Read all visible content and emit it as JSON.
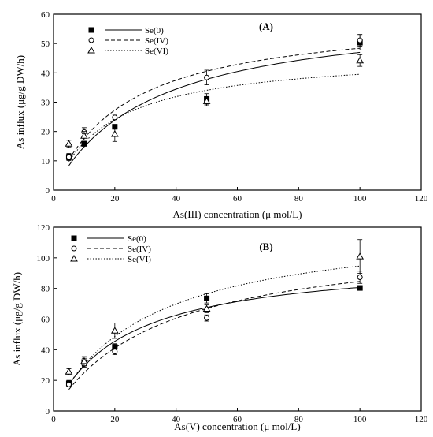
{
  "chart_data": [
    {
      "type": "scatter",
      "panel_label": "(A)",
      "xlabel": "As(III) concentration (μ mol/L)",
      "ylabel": "As influx (μg/g DW/h)",
      "xlim": [
        0,
        120
      ],
      "ylim": [
        0,
        60
      ],
      "xticks": [
        0,
        20,
        40,
        60,
        80,
        100,
        120
      ],
      "yticks": [
        0,
        10,
        20,
        30,
        40,
        50,
        60
      ],
      "legend_position": "top-left",
      "fits": "Michaelis-Menten curves",
      "series": [
        {
          "name": "Se(0)",
          "marker": "filled-square",
          "line": "solid",
          "x": [
            5,
            10,
            20,
            50,
            100
          ],
          "y": [
            11.3,
            15.8,
            21.6,
            31.1,
            50.3
          ],
          "err": [
            1.2,
            0.8,
            0.8,
            1.8,
            2.5
          ],
          "fit": {
            "vmax": 62,
            "km": 32
          }
        },
        {
          "name": "Se(IV)",
          "marker": "open-circle",
          "line": "dashed",
          "x": [
            5,
            10,
            20,
            50,
            100
          ],
          "y": [
            11.3,
            19.8,
            24.8,
            38.4,
            51.1
          ],
          "err": [
            1.0,
            1.5,
            0.8,
            2.5,
            2.0
          ],
          "fit": {
            "vmax": 60,
            "km": 24
          }
        },
        {
          "name": "Se(VI)",
          "marker": "open-triangle",
          "line": "dotted",
          "x": [
            5,
            10,
            20,
            50,
            100
          ],
          "y": [
            15.8,
            18.5,
            19.1,
            30.3,
            44.2
          ],
          "err": [
            1.2,
            1.5,
            2.5,
            1.5,
            2.0
          ],
          "fit": {
            "vmax": 47,
            "km": 19
          }
        }
      ]
    },
    {
      "type": "scatter",
      "panel_label": "(B)",
      "xlabel": "As(V) concentration (μ mol/L)",
      "ylabel": "As influx (μg/g DW/h)",
      "xlim": [
        0,
        120
      ],
      "ylim": [
        0,
        120
      ],
      "xticks": [
        0,
        20,
        40,
        60,
        80,
        100,
        120
      ],
      "yticks": [
        0,
        20,
        40,
        60,
        80,
        100,
        120
      ],
      "legend_position": "top-left",
      "fits": "Michaelis-Menten curves",
      "series": [
        {
          "name": "Se(0)",
          "marker": "filled-square",
          "line": "solid",
          "x": [
            5,
            10,
            20,
            50,
            100
          ],
          "y": [
            18.0,
            31.9,
            41.9,
            73.5,
            80.3
          ],
          "err": [
            2.0,
            2.5,
            2.0,
            3.0,
            1.5
          ],
          "fit": {
            "vmax": 100,
            "km": 24
          }
        },
        {
          "name": "Se(IV)",
          "marker": "open-circle",
          "line": "dashed",
          "x": [
            5,
            10,
            20,
            50,
            100
          ],
          "y": [
            17.3,
            30.6,
            38.8,
            60.7,
            87.3
          ],
          "err": [
            1.5,
            2.0,
            2.0,
            2.0,
            4.0
          ],
          "fit": {
            "vmax": 115,
            "km": 36
          }
        },
        {
          "name": "Se(VI)",
          "marker": "open-triangle",
          "line": "dotted",
          "x": [
            5,
            10,
            20,
            50,
            100
          ],
          "y": [
            25.6,
            32.5,
            52.4,
            66.7,
            100.9
          ],
          "err": [
            2.0,
            3.0,
            5.0,
            2.5,
            11.0
          ],
          "fit": {
            "vmax": 124,
            "km": 31
          }
        }
      ]
    }
  ]
}
